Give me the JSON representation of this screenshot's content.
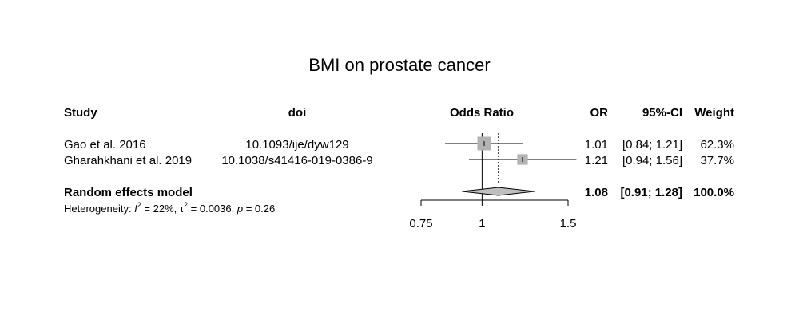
{
  "chart_data": {
    "type": "forest",
    "title": "BMI on prostate cancer",
    "columns": {
      "study": "Study",
      "doi": "doi",
      "plot": "Odds Ratio",
      "or": "OR",
      "ci": "95%-CI",
      "weight": "Weight"
    },
    "studies": [
      {
        "study": "Gao et al. 2016",
        "doi": "10.1093/ije/dyw129",
        "or": 1.01,
        "lower": 0.84,
        "upper": 1.21,
        "or_text": "1.01",
        "ci_text": "[0.84; 1.21]",
        "weight_text": "62.3%",
        "weight": 62.3
      },
      {
        "study": "Gharahkhani et al. 2019",
        "doi": "10.1038/s41416-019-0386-9",
        "or": 1.21,
        "lower": 0.94,
        "upper": 1.56,
        "or_text": "1.21",
        "ci_text": "[0.94; 1.56]",
        "weight_text": "37.7%",
        "weight": 37.7
      }
    ],
    "summary": {
      "label": "Random effects model",
      "or": 1.08,
      "lower": 0.91,
      "upper": 1.28,
      "or_text": "1.08",
      "ci_text": "[0.91; 1.28]",
      "weight_text": "100.0%"
    },
    "heterogeneity": {
      "prefix": "Heterogeneity: ",
      "i2_symbol": "I",
      "i2_value": " = 22%, ",
      "tau_symbol": "τ",
      "tau_value": " = 0.0036, ",
      "p_symbol": "p",
      "p_value": " = 0.26"
    },
    "x_axis": {
      "scale": "log",
      "ticks": [
        0.75,
        1,
        1.5
      ],
      "tick_labels": [
        "0.75",
        "1",
        "1.5"
      ],
      "null_value": 1
    },
    "colors": {
      "square": "#b3b3b3",
      "diamond": "#bfbfbf",
      "line": "#000000"
    }
  }
}
